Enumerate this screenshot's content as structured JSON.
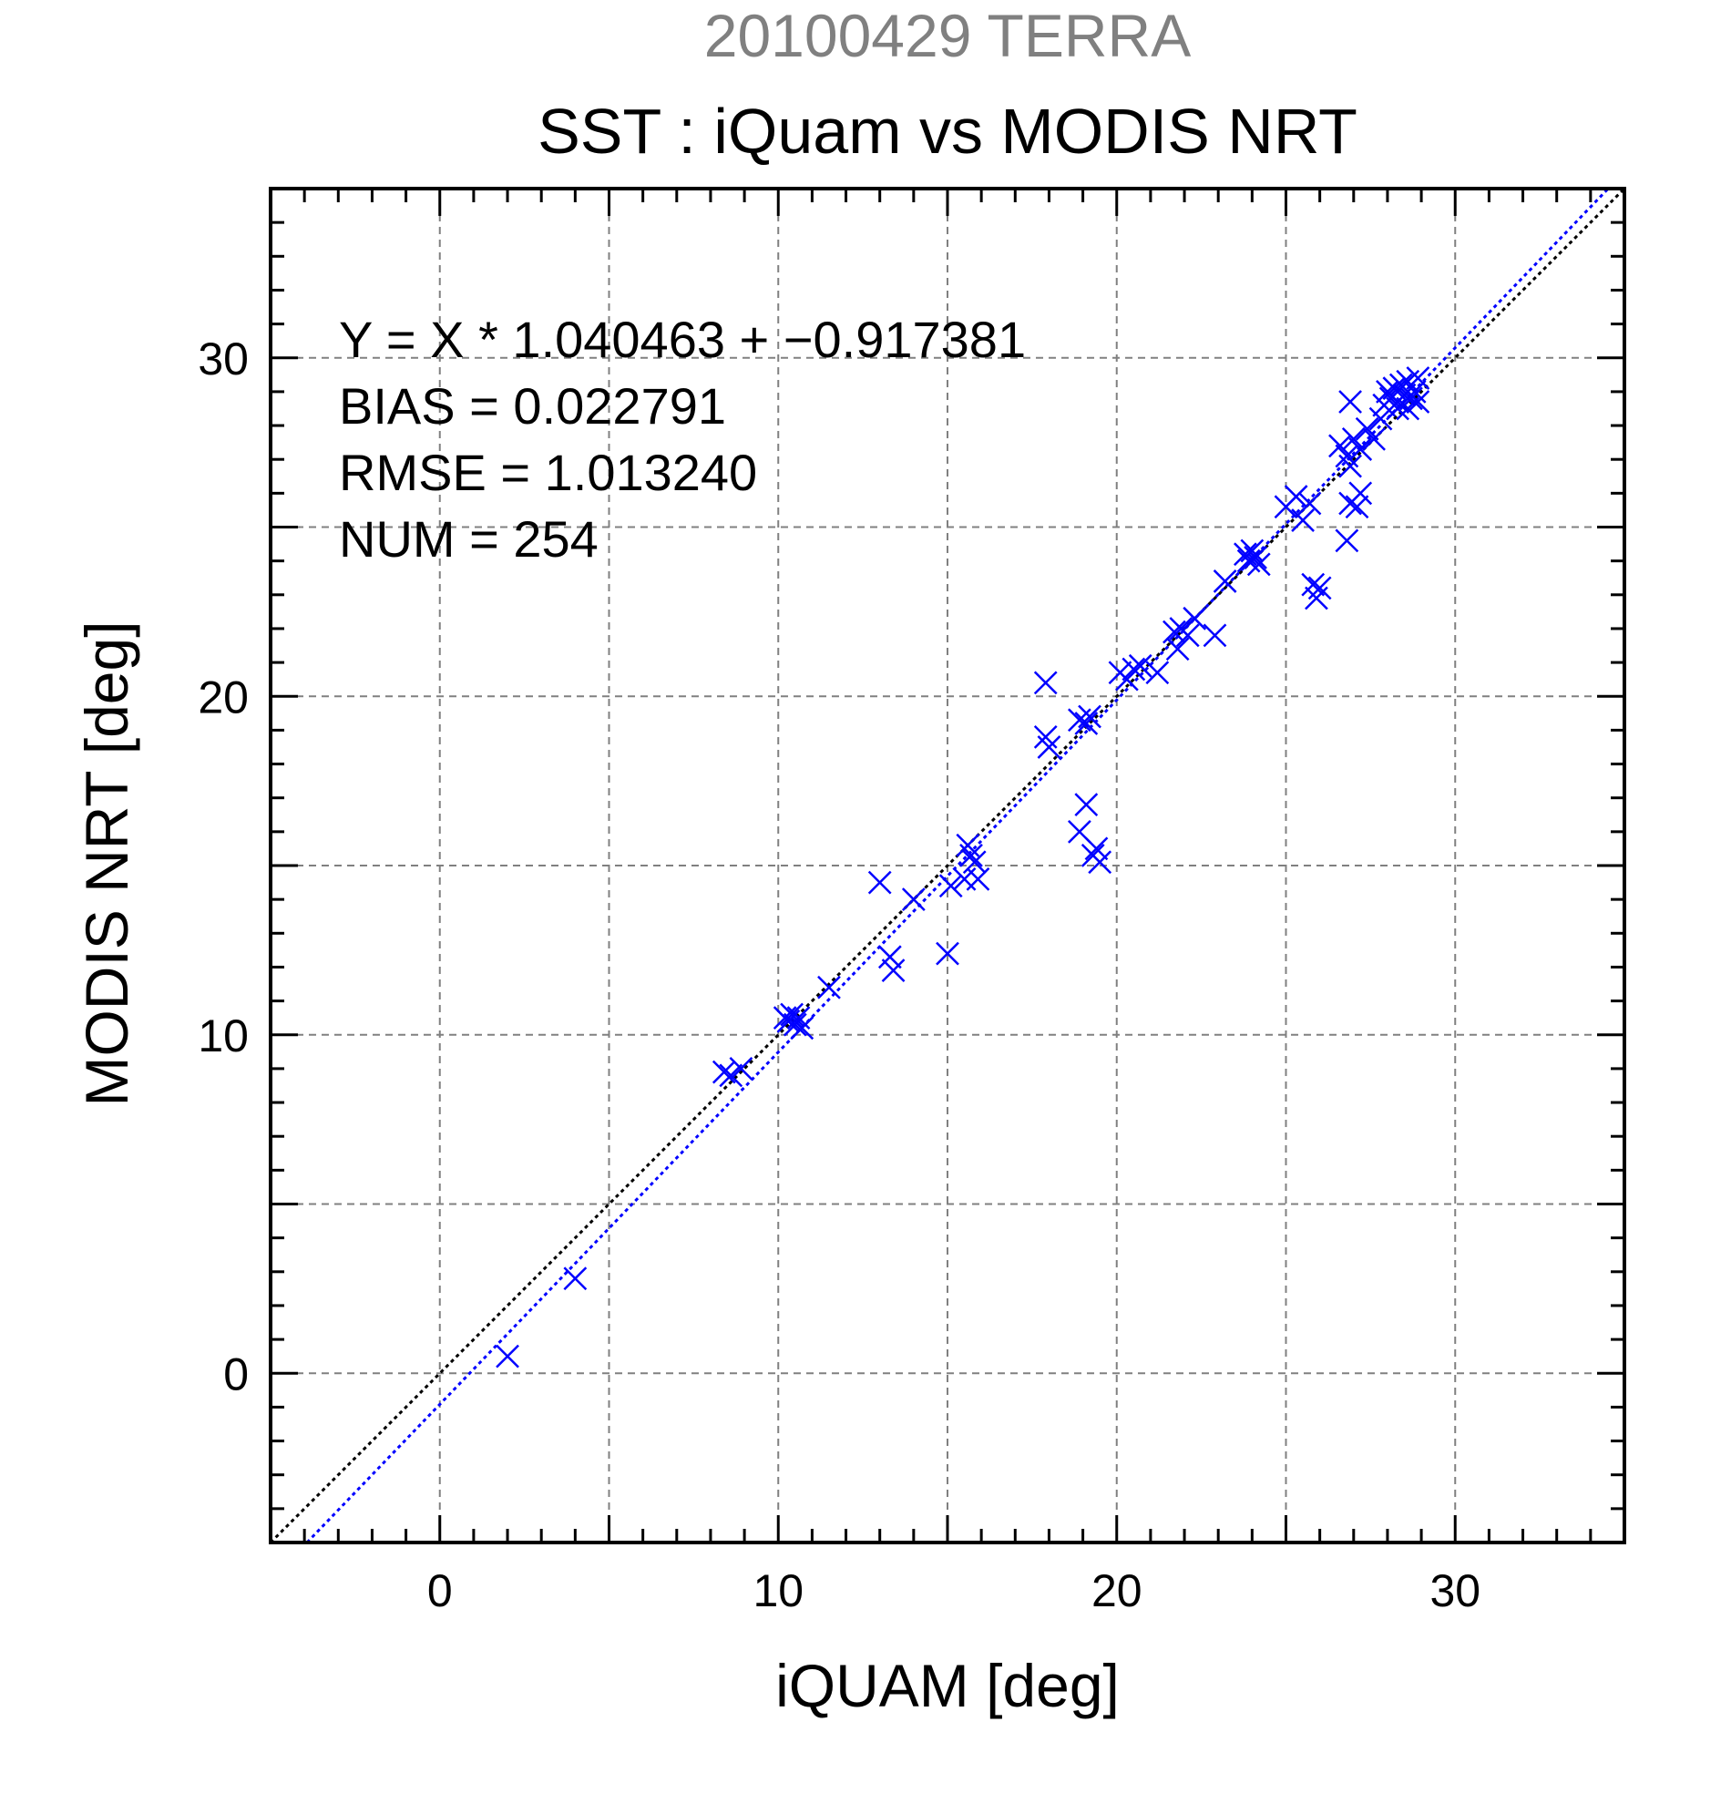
{
  "chart_data": {
    "type": "scatter",
    "title": "20100429 TERRA",
    "subtitle": "SST : iQuam vs MODIS NRT",
    "xlabel": "iQUAM [deg]",
    "ylabel": "MODIS NRT [deg]",
    "xlim": [
      -5,
      35
    ],
    "ylim": [
      -5,
      35
    ],
    "xticks": [
      0,
      10,
      20,
      30
    ],
    "yticks": [
      0,
      10,
      20,
      30
    ],
    "xgrid": [
      0,
      5,
      10,
      15,
      20,
      25,
      30
    ],
    "ygrid": [
      0,
      5,
      10,
      15,
      20,
      25,
      30
    ],
    "grid": true,
    "marker": "x",
    "series_color": "#0000ff",
    "identity_line_color": "#000000",
    "fit_line_color": "#0000ff",
    "fit": {
      "slope": 1.040463,
      "intercept": -0.917381
    },
    "stats_position": "top-left",
    "stats": [
      "Y = X * 1.040463 + −0.917381",
      "BIAS = 0.022791",
      "RMSE = 1.013240",
      "NUM = 254"
    ],
    "points": [
      [
        2.0,
        0.5
      ],
      [
        4.0,
        2.8
      ],
      [
        8.4,
        8.9
      ],
      [
        8.6,
        8.8
      ],
      [
        8.9,
        9.0
      ],
      [
        10.2,
        10.5
      ],
      [
        10.3,
        10.4
      ],
      [
        10.4,
        10.6
      ],
      [
        10.5,
        10.3
      ],
      [
        10.6,
        10.5
      ],
      [
        10.7,
        10.2
      ],
      [
        11.5,
        11.4
      ],
      [
        13.0,
        14.5
      ],
      [
        13.3,
        12.3
      ],
      [
        13.4,
        11.9
      ],
      [
        14.0,
        14.0
      ],
      [
        15.0,
        12.4
      ],
      [
        15.1,
        14.4
      ],
      [
        15.5,
        14.6
      ],
      [
        15.6,
        15.6
      ],
      [
        15.7,
        15.3
      ],
      [
        15.8,
        15.1
      ],
      [
        15.9,
        14.6
      ],
      [
        17.9,
        20.4
      ],
      [
        17.9,
        18.8
      ],
      [
        18.0,
        18.5
      ],
      [
        18.9,
        19.3
      ],
      [
        19.1,
        19.2
      ],
      [
        19.2,
        19.4
      ],
      [
        18.9,
        16.0
      ],
      [
        19.1,
        16.8
      ],
      [
        19.3,
        15.3
      ],
      [
        19.5,
        15.1
      ],
      [
        19.4,
        15.5
      ],
      [
        20.1,
        20.7
      ],
      [
        20.3,
        20.5
      ],
      [
        20.5,
        20.8
      ],
      [
        20.7,
        20.9
      ],
      [
        21.2,
        20.7
      ],
      [
        21.7,
        21.9
      ],
      [
        21.8,
        21.4
      ],
      [
        21.9,
        22.0
      ],
      [
        22.1,
        21.8
      ],
      [
        22.3,
        22.3
      ],
      [
        22.9,
        21.8
      ],
      [
        23.2,
        23.4
      ],
      [
        23.8,
        24.2
      ],
      [
        23.9,
        24.0
      ],
      [
        24.0,
        24.3
      ],
      [
        24.1,
        24.1
      ],
      [
        24.2,
        23.9
      ],
      [
        25.0,
        25.6
      ],
      [
        25.3,
        25.9
      ],
      [
        25.5,
        25.2
      ],
      [
        25.7,
        25.7
      ],
      [
        25.8,
        23.3
      ],
      [
        25.9,
        22.9
      ],
      [
        26.0,
        23.2
      ],
      [
        26.6,
        27.4
      ],
      [
        26.8,
        27.1
      ],
      [
        26.9,
        26.8
      ],
      [
        26.8,
        24.6
      ],
      [
        26.9,
        25.7
      ],
      [
        27.1,
        25.6
      ],
      [
        27.2,
        26.0
      ],
      [
        26.9,
        28.7
      ],
      [
        27.0,
        27.6
      ],
      [
        27.2,
        27.3
      ],
      [
        27.4,
        27.9
      ],
      [
        27.6,
        27.6
      ],
      [
        27.8,
        28.2
      ],
      [
        27.9,
        28.6
      ],
      [
        28.0,
        29.0
      ],
      [
        28.1,
        28.8
      ],
      [
        28.2,
        29.1
      ],
      [
        28.3,
        28.7
      ],
      [
        28.4,
        29.2
      ],
      [
        28.5,
        28.9
      ],
      [
        28.6,
        29.3
      ],
      [
        28.7,
        28.8
      ],
      [
        28.8,
        29.0
      ],
      [
        28.9,
        29.4
      ],
      [
        28.6,
        28.5
      ],
      [
        28.3,
        28.5
      ],
      [
        28.9,
        28.7
      ]
    ]
  }
}
